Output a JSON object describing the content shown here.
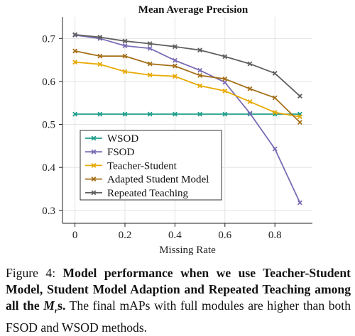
{
  "chart_data": {
    "type": "line",
    "title": "Mean Average Precision",
    "xlabel": "Missing Rate",
    "ylabel": "",
    "x": [
      0,
      0.1,
      0.2,
      0.3,
      0.4,
      0.5,
      0.6,
      0.7,
      0.8,
      0.9
    ],
    "xlim": [
      -0.05,
      0.95
    ],
    "ylim": [
      0.27,
      0.75
    ],
    "xticks": [
      0,
      0.2,
      0.4,
      0.6,
      0.8
    ],
    "xtick_labels": [
      "0",
      "0.2",
      "0.4",
      "0.6",
      "0.8"
    ],
    "yticks": [
      0.3,
      0.4,
      0.5,
      0.6,
      0.7
    ],
    "ytick_labels": [
      "0.3",
      "0.4",
      "0.5",
      "0.6",
      "0.7"
    ],
    "grid": true,
    "legend_position": "lower-left",
    "series": [
      {
        "name": "WSOD",
        "color": "#1f9e89",
        "values": [
          0.524,
          0.524,
          0.524,
          0.524,
          0.524,
          0.524,
          0.524,
          0.524,
          0.524,
          0.524
        ]
      },
      {
        "name": "FSOD",
        "color": "#7b6bb5",
        "values": [
          0.708,
          0.7,
          0.683,
          0.677,
          0.649,
          0.626,
          0.598,
          0.526,
          0.443,
          0.318
        ]
      },
      {
        "name": "Teacher-Student",
        "color": "#e8a900",
        "values": [
          0.645,
          0.64,
          0.623,
          0.615,
          0.612,
          0.59,
          0.578,
          0.553,
          0.528,
          0.518
        ]
      },
      {
        "name": "Adapted Student Model",
        "color": "#a5701a",
        "values": [
          0.671,
          0.659,
          0.659,
          0.641,
          0.636,
          0.614,
          0.606,
          0.583,
          0.562,
          0.505
        ]
      },
      {
        "name": "Repeated Teaching",
        "color": "#606060",
        "values": [
          0.709,
          0.703,
          0.694,
          0.688,
          0.681,
          0.673,
          0.658,
          0.641,
          0.619,
          0.566
        ]
      }
    ]
  },
  "caption": {
    "prefix": "Figure 4: ",
    "bold_part": "Model performance when we use Teacher-Student Model, Student Model Adaption and Repeated Teaching among all the ",
    "math_M": "M",
    "math_r": "r",
    "bold_suffix": "s.",
    "rest": " The final mAPs with full modules are higher than both FSOD and WSOD methods."
  }
}
